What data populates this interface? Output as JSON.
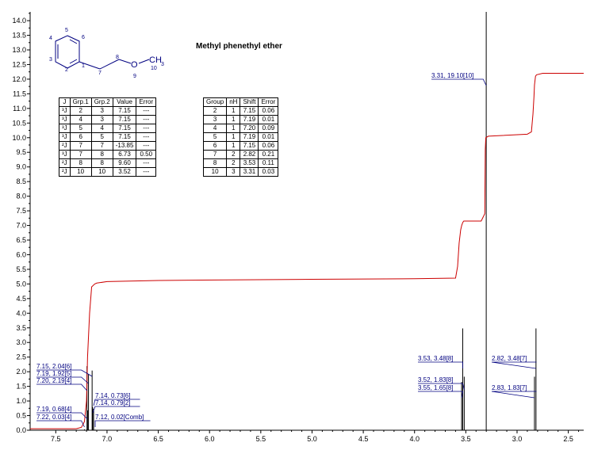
{
  "chart_data": {
    "type": "line",
    "title": "Methyl phenethyl ether",
    "xlabel": "",
    "ylabel": "",
    "xlim": [
      7.75,
      2.35
    ],
    "ylim": [
      0,
      14.3
    ],
    "x_reversed": true,
    "xticks": [
      "7.5",
      "7.0",
      "6.5",
      "6.0",
      "5.5",
      "5.0",
      "4.5",
      "4.0",
      "3.5",
      "3.0",
      "2.5"
    ],
    "yticks": [
      "0.0",
      "0.5",
      "1.0",
      "1.5",
      "2.0",
      "2.5",
      "3.0",
      "3.5",
      "4.0",
      "4.5",
      "5.0",
      "5.5",
      "6.0",
      "6.5",
      "7.0",
      "7.5",
      "8.0",
      "8.5",
      "9.0",
      "9.5",
      "10.0",
      "10.5",
      "11.0",
      "11.5",
      "12.0",
      "12.5",
      "13.0",
      "13.5",
      "14.0"
    ],
    "integral": {
      "color": "#cc0000",
      "x": [
        7.75,
        7.3,
        7.25,
        7.22,
        7.2,
        7.19,
        7.17,
        7.15,
        7.12,
        7.1,
        7.0,
        6.5,
        5.0,
        4.0,
        3.6,
        3.58,
        3.565,
        3.55,
        3.54,
        3.53,
        3.52,
        3.35,
        3.315,
        3.31,
        3.305,
        3.28,
        2.9,
        2.86,
        2.845,
        2.835,
        2.83,
        2.82,
        2.81,
        2.75,
        2.35
      ],
      "y": [
        0.05,
        0.05,
        0.1,
        0.3,
        1.0,
        2.5,
        4.0,
        4.9,
        5.0,
        5.03,
        5.08,
        5.12,
        5.16,
        5.18,
        5.2,
        5.6,
        6.4,
        6.85,
        7.0,
        7.1,
        7.15,
        7.15,
        7.4,
        9.6,
        10.0,
        10.05,
        10.12,
        10.2,
        10.8,
        11.4,
        11.8,
        12.1,
        12.15,
        12.2,
        12.2
      ]
    },
    "peaks": [
      {
        "shift": 7.22,
        "height": 0.03,
        "group": "4"
      },
      {
        "shift": 7.2,
        "height": 2.19,
        "group": "4"
      },
      {
        "shift": 7.19,
        "height": 1.92,
        "group": "5"
      },
      {
        "shift": 7.19,
        "height": 0.68,
        "group": "4"
      },
      {
        "shift": 7.15,
        "height": 2.04,
        "group": "6"
      },
      {
        "shift": 7.14,
        "height": 0.73,
        "group": "6"
      },
      {
        "shift": 7.14,
        "height": 0.79,
        "group": "2"
      },
      {
        "shift": 7.12,
        "height": 0.02,
        "group": "Comb"
      },
      {
        "shift": 3.55,
        "height": 1.65,
        "group": "8"
      },
      {
        "shift": 3.53,
        "height": 3.48,
        "group": "8"
      },
      {
        "shift": 3.52,
        "height": 1.83,
        "group": "8"
      },
      {
        "shift": 3.31,
        "height": 19.1,
        "group": "10"
      },
      {
        "shift": 2.83,
        "height": 1.83,
        "group": "7"
      },
      {
        "shift": 2.82,
        "height": 3.48,
        "group": "7"
      }
    ],
    "labels": [
      {
        "text": "7.15, 2.04[6]",
        "peak": 4
      },
      {
        "text": "7.19, 1.92[5]",
        "peak": 2
      },
      {
        "text": "7.20, 2.19[4]",
        "peak": 1
      },
      {
        "text": "7.19, 0.68[4]",
        "peak": 3
      },
      {
        "text": "7.22, 0.03[4]",
        "peak": 0
      },
      {
        "text": "7.14, 0.73[6]",
        "peak": 5
      },
      {
        "text": "7.14, 0.79[2]",
        "peak": 6
      },
      {
        "text": "7.12, 0.02[Comb]",
        "peak": 7
      },
      {
        "text": "3.53, 3.48[8]",
        "peak": 9
      },
      {
        "text": "3.52, 1.83[8]",
        "peak": 10
      },
      {
        "text": "3.55, 1.65[8]",
        "peak": 8
      },
      {
        "text": "3.31, 19.10[10]",
        "peak": 11
      },
      {
        "text": "2.82, 3.48[7]",
        "peak": 13
      },
      {
        "text": "2.83, 1.83[7]",
        "peak": 12
      }
    ]
  },
  "molecule": {
    "atom_numbers": [
      "1",
      "2",
      "3",
      "4",
      "5",
      "6",
      "7",
      "8",
      "9",
      "10"
    ],
    "oxygen": "O",
    "methyl": "CH",
    "methyl_sub": "3"
  },
  "coupling_table": {
    "headers": [
      "J",
      "Grp.1",
      "Grp.2",
      "Value",
      "Error"
    ],
    "rows": [
      [
        "³J",
        "2",
        "3",
        "7.15",
        "---"
      ],
      [
        "³J",
        "4",
        "3",
        "7.15",
        "---"
      ],
      [
        "³J",
        "5",
        "4",
        "7.15",
        "---"
      ],
      [
        "³J",
        "6",
        "5",
        "7.15",
        "---"
      ],
      [
        "²J",
        "7",
        "7",
        "-13.85",
        "---"
      ],
      [
        "³J",
        "7",
        "8",
        "6.73",
        "0.50"
      ],
      [
        "²J",
        "8",
        "8",
        "9.60",
        "---"
      ],
      [
        "²J",
        "10",
        "10",
        "3.52",
        "---"
      ]
    ]
  },
  "shift_table": {
    "headers": [
      "Group",
      "nH",
      "Shift",
      "Error"
    ],
    "rows": [
      [
        "2",
        "1",
        "7.15",
        "0.06"
      ],
      [
        "3",
        "1",
        "7.19",
        "0.01"
      ],
      [
        "4",
        "1",
        "7.20",
        "0.09"
      ],
      [
        "5",
        "1",
        "7.19",
        "0.01"
      ],
      [
        "6",
        "1",
        "7.15",
        "0.06"
      ],
      [
        "7",
        "2",
        "2.82",
        "0.21"
      ],
      [
        "8",
        "2",
        "3.53",
        "0.11"
      ],
      [
        "10",
        "3",
        "3.31",
        "0.03"
      ]
    ]
  }
}
